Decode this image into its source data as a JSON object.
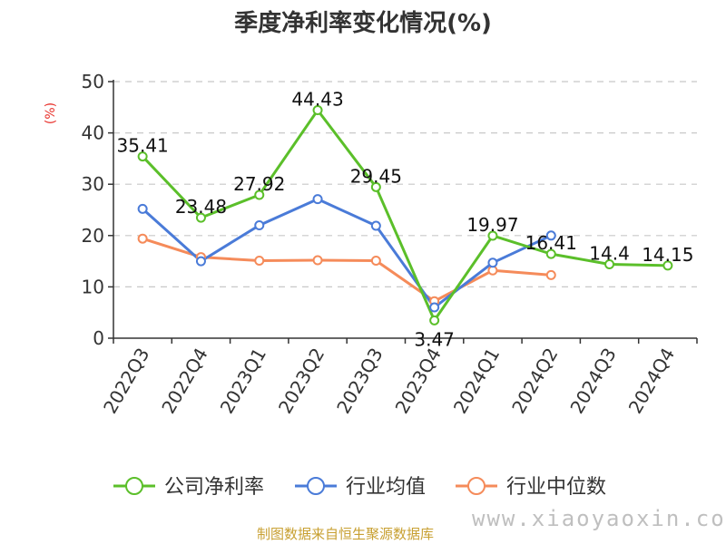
{
  "chart_data": {
    "type": "line",
    "title": "季度净利率变化情况(%)",
    "ylabel": "(%)",
    "ylim": [
      0,
      50
    ],
    "yticks": [
      0,
      10,
      20,
      30,
      40,
      50
    ],
    "grid": true,
    "legend_position": "bottom",
    "categories": [
      "2022Q3",
      "2022Q4",
      "2023Q1",
      "2023Q2",
      "2023Q3",
      "2023Q4",
      "2024Q1",
      "2024Q2",
      "2024Q3",
      "2024Q4"
    ],
    "series": [
      {
        "name": "公司净利率",
        "color": "#5bbf2a",
        "values": [
          35.41,
          23.48,
          27.92,
          44.43,
          29.45,
          3.47,
          19.97,
          16.41,
          14.4,
          14.15
        ],
        "labels": [
          "35.41",
          "23.48",
          "27.92",
          "44.43",
          "29.45",
          "3.47",
          "19.97",
          "16.41",
          "14.4",
          "14.15"
        ]
      },
      {
        "name": "行业均值",
        "color": "#4a7bd8",
        "values": [
          25.2,
          15.0,
          22.0,
          27.1,
          21.9,
          6.0,
          14.7,
          20.0,
          null,
          null
        ]
      },
      {
        "name": "行业中位数",
        "color": "#f58b5a",
        "values": [
          19.4,
          15.8,
          15.1,
          15.2,
          15.1,
          7.2,
          13.2,
          12.3,
          null,
          null
        ]
      }
    ]
  },
  "footer": {
    "source": "制图数据来自恒生聚源数据库",
    "watermark": "www.xiaoyaoxin.com"
  }
}
